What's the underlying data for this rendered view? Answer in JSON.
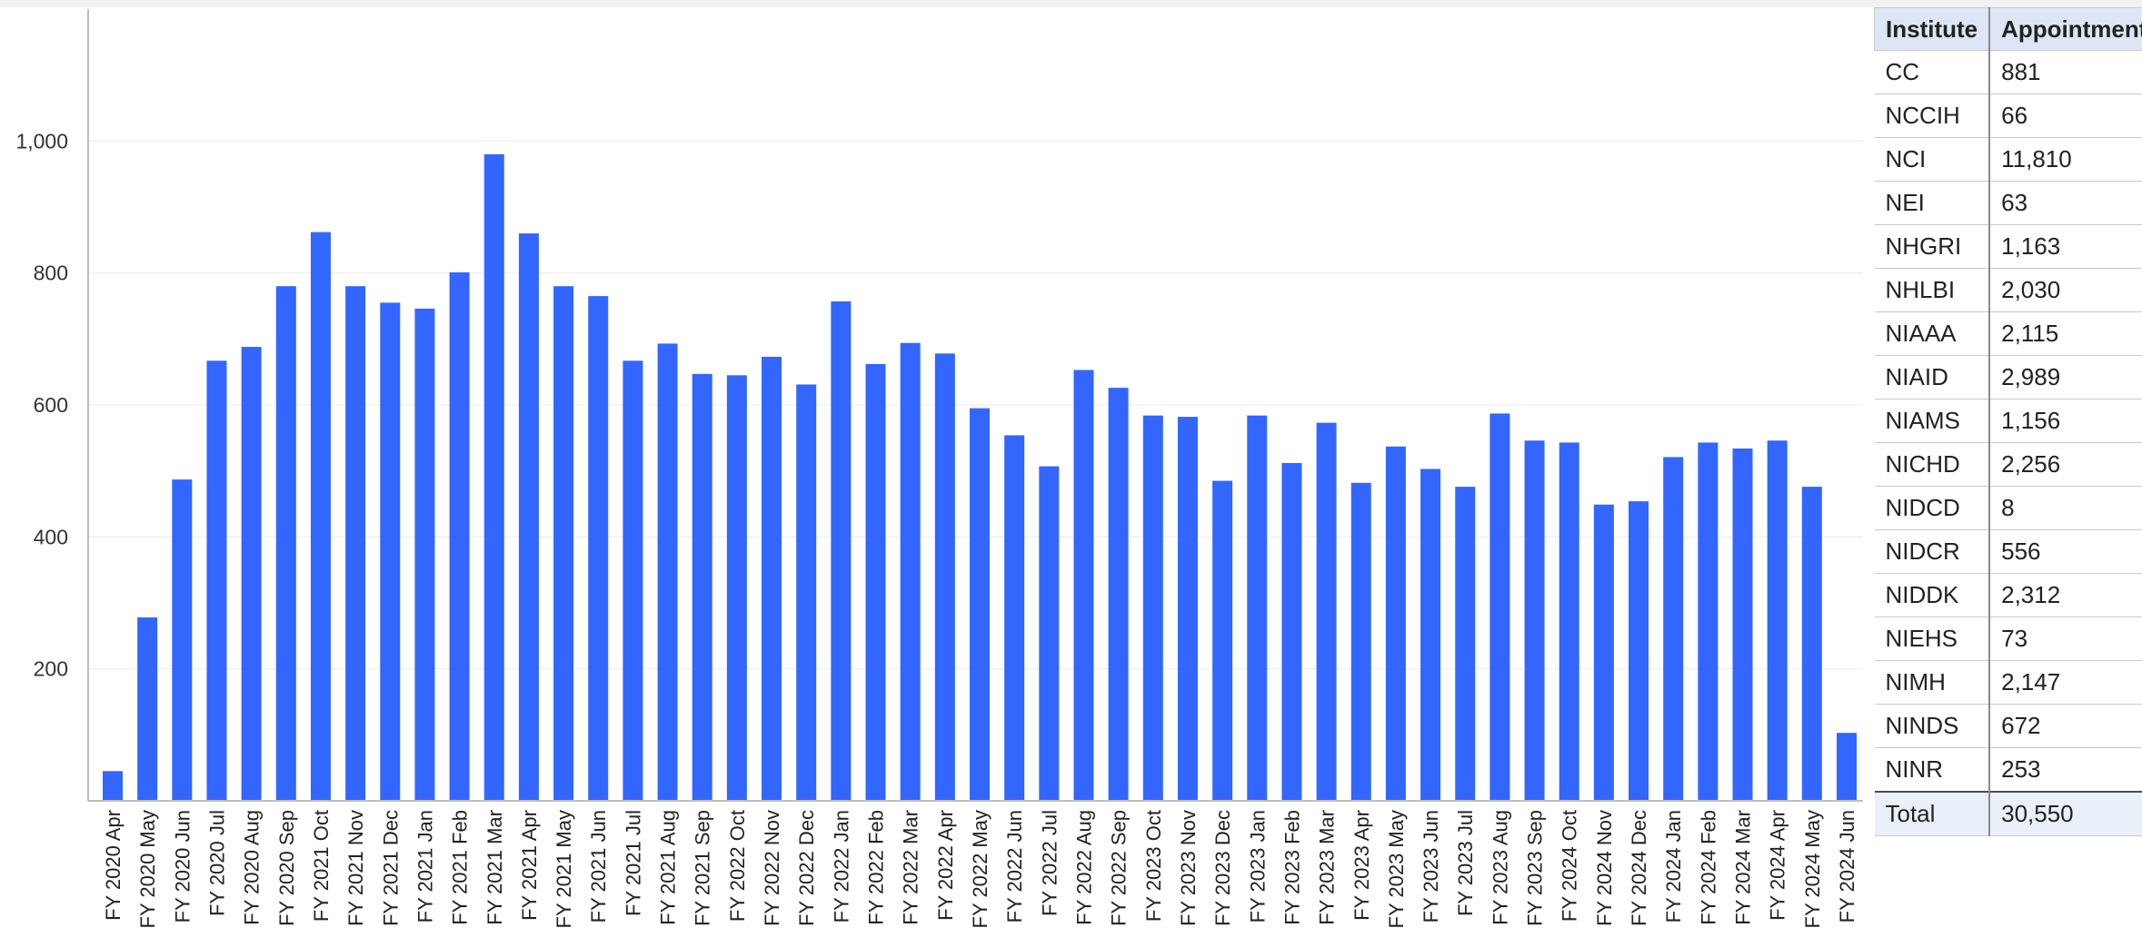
{
  "chart_data": {
    "type": "bar",
    "title": "",
    "xlabel": "",
    "ylabel": "",
    "ylim": [
      0,
      1200
    ],
    "yticks": [
      200,
      400,
      600,
      800,
      1000
    ],
    "ytick_labels": [
      "200",
      "400",
      "600",
      "800",
      "1,000"
    ],
    "grid": true,
    "bar_color": "#3366ff",
    "categories": [
      "FY 2020 Apr",
      "FY 2020 May",
      "FY 2020 Jun",
      "FY 2020 Jul",
      "FY 2020 Aug",
      "FY 2020 Sep",
      "FY 2021 Oct",
      "FY 2021 Nov",
      "FY 2021 Dec",
      "FY 2021 Jan",
      "FY 2021 Feb",
      "FY 2021 Mar",
      "FY 2021 Apr",
      "FY 2021 May",
      "FY 2021 Jun",
      "FY 2021 Jul",
      "FY 2021 Aug",
      "FY 2021 Sep",
      "FY 2022 Oct",
      "FY 2022 Nov",
      "FY 2022 Dec",
      "FY 2022 Jan",
      "FY 2022 Feb",
      "FY 2022 Mar",
      "FY 2022 Apr",
      "FY 2022 May",
      "FY 2022 Jun",
      "FY 2022 Jul",
      "FY 2022 Aug",
      "FY 2022 Sep",
      "FY 2023 Oct",
      "FY 2023 Nov",
      "FY 2023 Dec",
      "FY 2023 Jan",
      "FY 2023 Feb",
      "FY 2023 Mar",
      "FY 2023 Apr",
      "FY 2023 May",
      "FY 2023 Jun",
      "FY 2023 Jul",
      "FY 2023 Aug",
      "FY 2023 Sep",
      "FY 2024 Oct",
      "FY 2024 Nov",
      "FY 2024 Dec",
      "FY 2024 Jan",
      "FY 2024 Feb",
      "FY 2024 Mar",
      "FY 2024 Apr",
      "FY 2024 May",
      "FY 2024 Jun"
    ],
    "values": [
      45,
      278,
      487,
      667,
      688,
      780,
      862,
      780,
      755,
      746,
      801,
      980,
      860,
      780,
      765,
      667,
      693,
      647,
      645,
      673,
      631,
      757,
      662,
      694,
      678,
      595,
      554,
      507,
      653,
      626,
      584,
      582,
      485,
      584,
      512,
      573,
      482,
      537,
      503,
      476,
      587,
      546,
      543,
      449,
      454,
      521,
      543,
      534,
      546,
      476,
      103
    ]
  },
  "table": {
    "headers": [
      "Institute",
      "Appointments"
    ],
    "rows": [
      [
        "CC",
        "881"
      ],
      [
        "NCCIH",
        "66"
      ],
      [
        "NCI",
        "11,810"
      ],
      [
        "NEI",
        "63"
      ],
      [
        "NHGRI",
        "1,163"
      ],
      [
        "NHLBI",
        "2,030"
      ],
      [
        "NIAAA",
        "2,115"
      ],
      [
        "NIAID",
        "2,989"
      ],
      [
        "NIAMS",
        "1,156"
      ],
      [
        "NICHD",
        "2,256"
      ],
      [
        "NIDCD",
        "8"
      ],
      [
        "NIDCR",
        "556"
      ],
      [
        "NIDDK",
        "2,312"
      ],
      [
        "NIEHS",
        "73"
      ],
      [
        "NIMH",
        "2,147"
      ],
      [
        "NINDS",
        "672"
      ],
      [
        "NINR",
        "253"
      ]
    ],
    "total_label": "Total",
    "total_value": "30,550"
  }
}
